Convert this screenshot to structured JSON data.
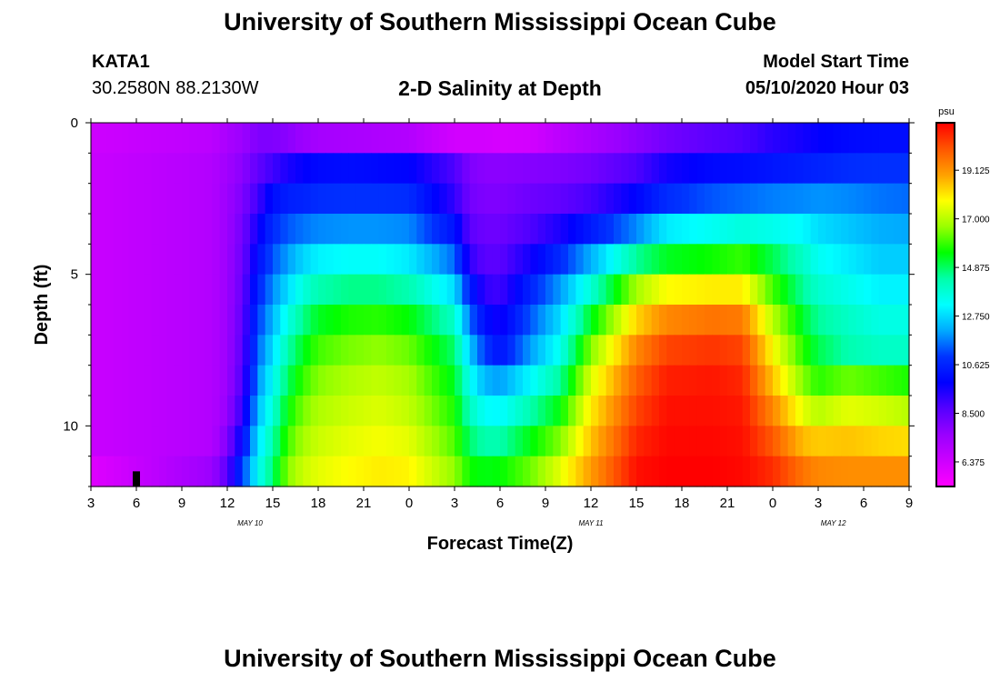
{
  "header": {
    "title": "University of Southern Mississippi Ocean Cube",
    "station_id": "KATA1",
    "station_coords": "30.2580N 88.2130W",
    "subtitle": "2-D Salinity at Depth",
    "model_start_label": "Model Start Time",
    "model_start_value": "05/10/2020 Hour 03"
  },
  "footer": {
    "title": "University of Southern Mississippi Ocean Cube"
  },
  "colorbar": {
    "unit": "psu",
    "ticks": [
      "19.125",
      "17.000",
      "14.875",
      "12.750",
      "10.625",
      "8.500",
      "6.375"
    ],
    "colors": [
      "#ff0000",
      "#ff5500",
      "#ffa000",
      "#ffff00",
      "#99ff00",
      "#00ff00",
      "#00ffaa",
      "#00ffff",
      "#00aaff",
      "#0033ff",
      "#0000ff",
      "#5500ff",
      "#9900ff",
      "#cc00ff",
      "#ff00ff"
    ]
  },
  "chart_data": {
    "type": "heatmap",
    "title": "2-D Salinity at Depth",
    "xlabel": "Forecast Time(Z)",
    "ylabel": "Depth (ft)",
    "value_unit": "psu",
    "value_range": [
      5.3,
      21.2
    ],
    "x_tick_labels": [
      "3",
      "6",
      "9",
      "12",
      "15",
      "18",
      "21",
      "0",
      "3",
      "6",
      "9",
      "12",
      "15",
      "18",
      "21",
      "0",
      "3",
      "6",
      "9"
    ],
    "x_hours_since_start": [
      0,
      3,
      6,
      9,
      12,
      15,
      18,
      21,
      24,
      27,
      30,
      33,
      36,
      39,
      42,
      45,
      48,
      51,
      54
    ],
    "date_labels": [
      {
        "label": "MAY 10",
        "hour": 10.5
      },
      {
        "label": "MAY 11",
        "hour": 33
      },
      {
        "label": "MAY 12",
        "hour": 49
      }
    ],
    "y_ticks": [
      0,
      5,
      10
    ],
    "y_range": [
      0,
      12
    ],
    "depth_layers_ft": [
      0.5,
      1.5,
      2.5,
      3.5,
      4.5,
      5.5,
      6.5,
      7.5,
      8.5,
      9.5,
      10.5,
      11.5
    ],
    "profile_hours": [
      0,
      8,
      9,
      10,
      11,
      12,
      13,
      14,
      15,
      17,
      19,
      21,
      24,
      25,
      26,
      27,
      29,
      31,
      33,
      36,
      38,
      41,
      43,
      45,
      47,
      48,
      50,
      52,
      54
    ],
    "profiles": [
      [
        6.4,
        6.5,
        6.5,
        6.5,
        6.5,
        6.5,
        6.5,
        6.5,
        6.5,
        6.5,
        6.5,
        6.0
      ],
      [
        6.8,
        7.0,
        7.0,
        7.0,
        7.0,
        7.0,
        7.0,
        7.0,
        7.0,
        7.0,
        7.0,
        7.5
      ],
      [
        7.2,
        7.4,
        7.5,
        7.5,
        7.5,
        7.5,
        7.5,
        7.5,
        7.5,
        7.6,
        8.0,
        8.6
      ],
      [
        7.5,
        7.8,
        8.0,
        8.2,
        8.3,
        8.4,
        8.5,
        8.6,
        8.8,
        9.2,
        10.0,
        11.0
      ],
      [
        8.0,
        8.5,
        9.0,
        9.6,
        10.1,
        10.6,
        11.0,
        11.4,
        11.8,
        12.3,
        12.8,
        13.3
      ],
      [
        8.0,
        9.0,
        10.1,
        10.8,
        11.3,
        11.8,
        12.3,
        12.8,
        13.3,
        13.8,
        14.3,
        14.8
      ],
      [
        7.8,
        9.5,
        10.5,
        11.3,
        12.0,
        12.8,
        13.6,
        14.3,
        14.9,
        15.5,
        16.0,
        16.5
      ],
      [
        7.5,
        9.8,
        10.6,
        11.6,
        12.7,
        13.7,
        14.6,
        15.3,
        15.9,
        16.4,
        16.8,
        17.2
      ],
      [
        7.3,
        10.0,
        10.8,
        11.8,
        13.1,
        14.3,
        15.3,
        16.0,
        16.5,
        16.9,
        17.2,
        17.5
      ],
      [
        7.2,
        10.1,
        10.9,
        11.9,
        13.3,
        14.6,
        15.7,
        16.4,
        16.9,
        17.2,
        17.5,
        17.8
      ],
      [
        7.1,
        10.0,
        10.9,
        11.9,
        13.3,
        14.6,
        15.8,
        16.6,
        17.1,
        17.4,
        17.7,
        18.0
      ],
      [
        7.0,
        9.9,
        10.8,
        11.8,
        13.0,
        14.3,
        15.5,
        16.3,
        16.8,
        17.1,
        17.5,
        17.9
      ],
      [
        6.3,
        8.8,
        9.2,
        10.2,
        11.5,
        12.8,
        14.0,
        14.8,
        15.3,
        15.7,
        16.1,
        16.6
      ],
      [
        6.3,
        8.0,
        8.2,
        8.6,
        9.2,
        10.5,
        11.5,
        12.5,
        13.4,
        14.1,
        14.8,
        15.6
      ],
      [
        6.3,
        7.8,
        8.0,
        8.3,
        8.6,
        9.2,
        10.1,
        11.0,
        12.3,
        13.3,
        14.3,
        15.4
      ],
      [
        6.2,
        7.8,
        8.0,
        8.3,
        8.6,
        9.0,
        9.6,
        10.2,
        12.0,
        13.2,
        14.3,
        15.5
      ],
      [
        6.3,
        7.9,
        8.3,
        8.8,
        9.6,
        10.6,
        11.3,
        12.0,
        13.2,
        14.3,
        15.4,
        16.3
      ],
      [
        6.8,
        8.0,
        8.5,
        9.5,
        10.8,
        12.0,
        12.8,
        13.5,
        14.5,
        15.5,
        16.5,
        17.5
      ],
      [
        7.2,
        8.2,
        8.9,
        10.4,
        12.2,
        13.8,
        15.3,
        16.5,
        17.4,
        18.0,
        18.5,
        19.0
      ],
      [
        7.8,
        8.8,
        9.9,
        11.8,
        14.5,
        16.8,
        18.3,
        19.3,
        19.9,
        20.3,
        20.7,
        21.0
      ],
      [
        8.2,
        9.6,
        10.8,
        13.0,
        15.3,
        17.8,
        19.3,
        20.3,
        20.8,
        21.0,
        21.1,
        21.2
      ],
      [
        8.6,
        10.0,
        11.3,
        13.4,
        15.6,
        18.0,
        19.6,
        20.5,
        20.9,
        21.0,
        21.1,
        21.2
      ],
      [
        8.8,
        10.1,
        11.5,
        13.7,
        15.9,
        18.0,
        19.5,
        20.3,
        20.7,
        20.9,
        21.0,
        21.1
      ],
      [
        9.3,
        10.3,
        11.7,
        13.5,
        15.0,
        16.0,
        17.0,
        17.8,
        18.5,
        19.3,
        20.0,
        20.6
      ],
      [
        9.6,
        10.5,
        11.8,
        13.2,
        14.0,
        14.5,
        15.2,
        15.8,
        16.5,
        17.5,
        18.6,
        19.6
      ],
      [
        9.8,
        10.6,
        11.9,
        12.8,
        13.4,
        13.9,
        14.5,
        15.0,
        15.8,
        17.0,
        18.4,
        19.3
      ],
      [
        10.0,
        10.8,
        11.8,
        12.5,
        13.0,
        13.5,
        14.0,
        14.3,
        16.3,
        17.5,
        18.5,
        19.2
      ],
      [
        10.1,
        10.9,
        11.6,
        12.2,
        12.6,
        13.1,
        13.6,
        14.0,
        16.0,
        17.3,
        18.3,
        19.2
      ],
      [
        10.1,
        10.9,
        11.5,
        12.1,
        12.6,
        13.1,
        13.6,
        14.0,
        15.7,
        17.0,
        18.2,
        19.2
      ]
    ],
    "marker": {
      "hour": 3,
      "depth_ft": [
        11.5,
        12
      ]
    }
  }
}
